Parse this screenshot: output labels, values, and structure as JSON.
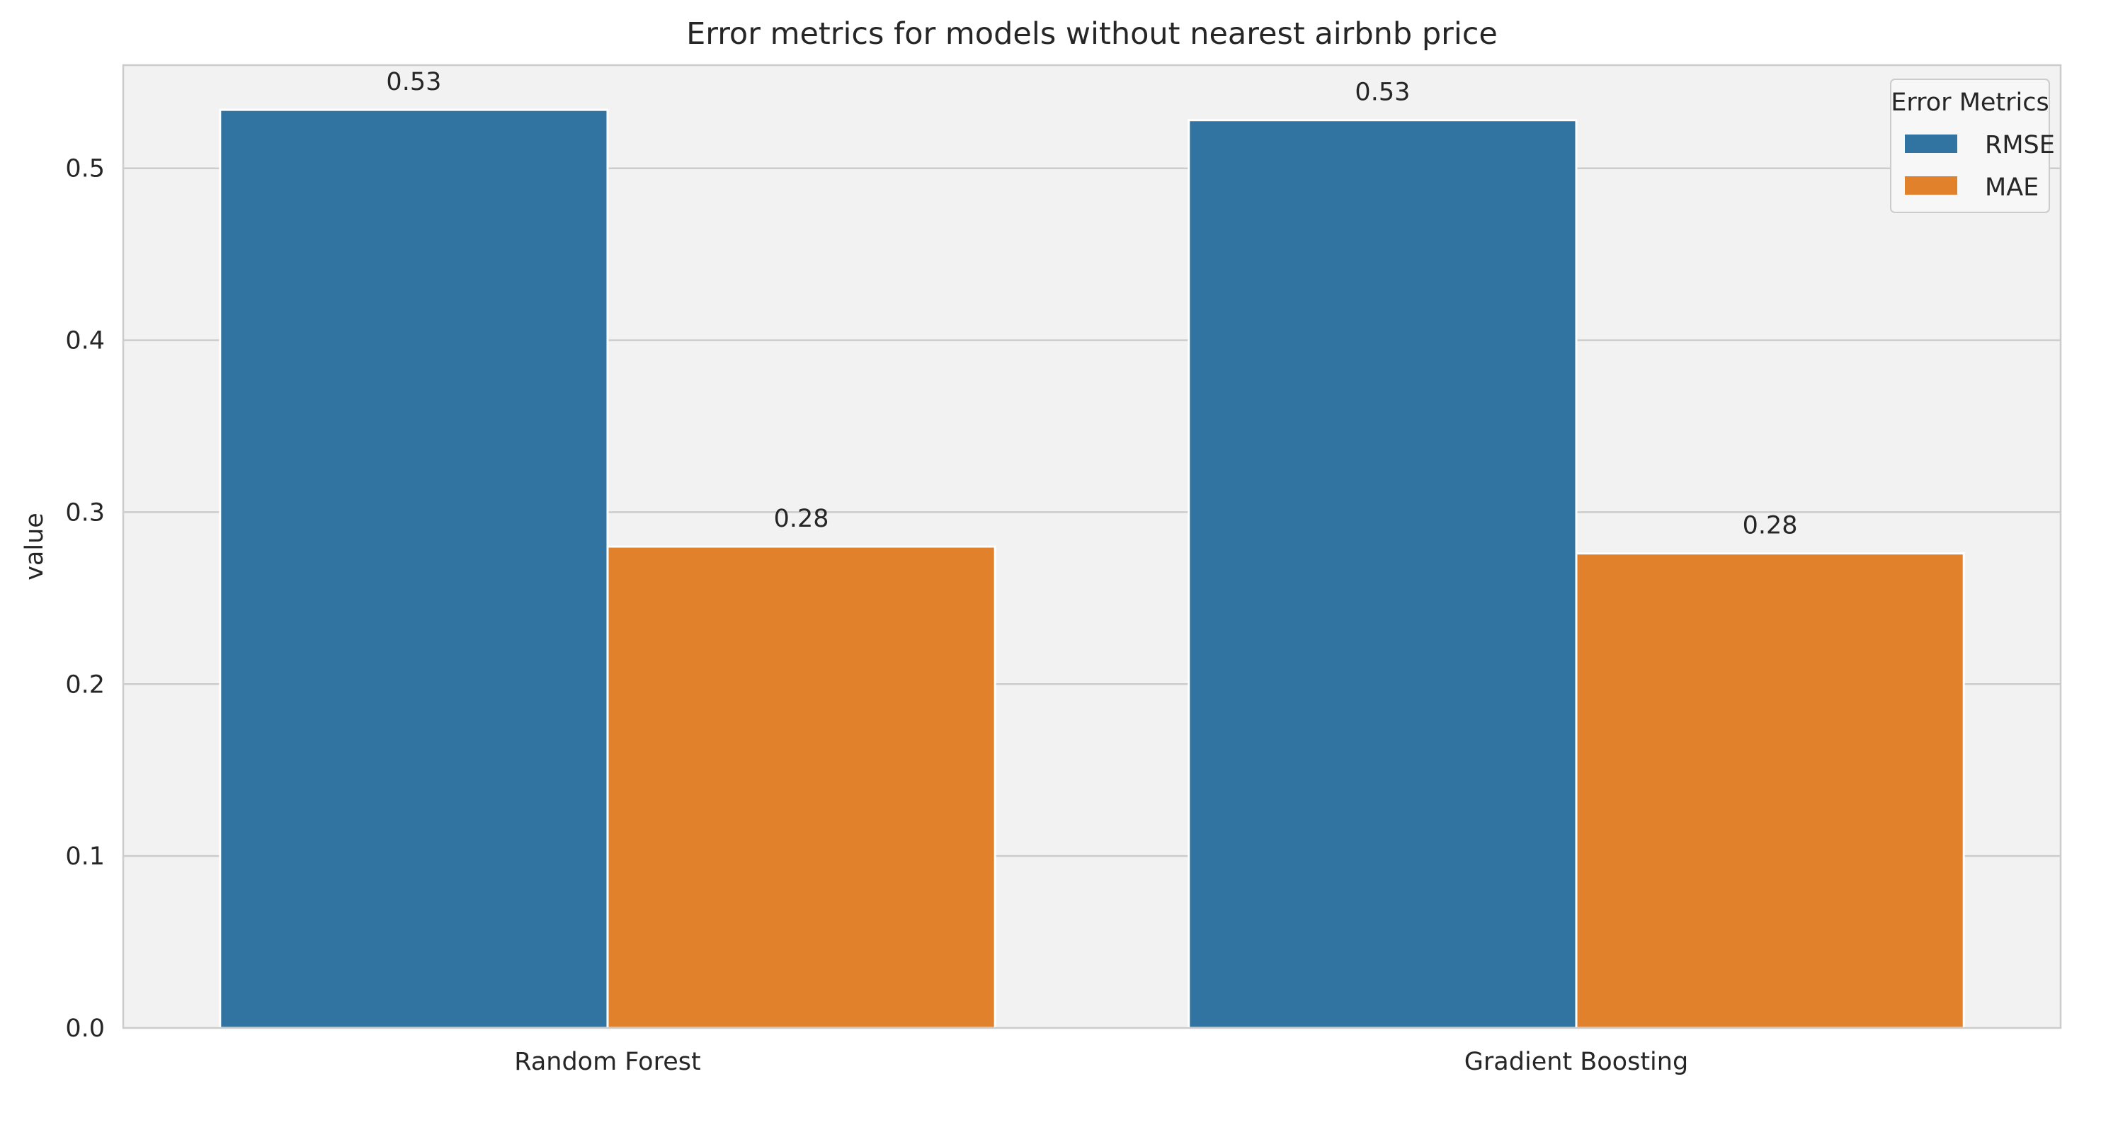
{
  "chart_data": {
    "type": "bar",
    "title": "Error metrics for models without nearest airbnb price",
    "xlabel": "",
    "ylabel": "value",
    "categories": [
      "Random Forest",
      "Gradient Boosting"
    ],
    "series": [
      {
        "name": "RMSE",
        "values": [
          0.534,
          0.528
        ],
        "labels": [
          "0.53",
          "0.53"
        ],
        "color": "#3274a1"
      },
      {
        "name": "MAE",
        "values": [
          0.28,
          0.276
        ],
        "labels": [
          "0.28",
          "0.28"
        ],
        "color": "#e1812c"
      }
    ],
    "ylim": [
      0,
      0.56
    ],
    "yticks": [
      0.0,
      0.1,
      0.2,
      0.3,
      0.4,
      0.5
    ],
    "ytick_labels": [
      "0.0",
      "0.1",
      "0.2",
      "0.3",
      "0.4",
      "0.5"
    ],
    "legend_title": "Error Metrics",
    "legend_position": "top-right",
    "grid": "horizontal",
    "background_color": "#f2f2f2",
    "grid_color": "#cccccc"
  }
}
